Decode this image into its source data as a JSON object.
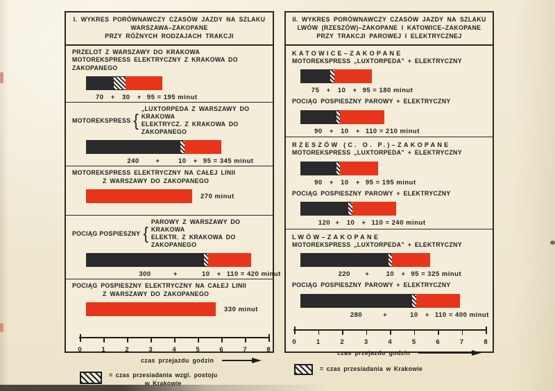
{
  "symbols": {
    "plus": "+",
    "equals": "="
  },
  "chart_data": [
    {
      "type": "bar",
      "panel": "I",
      "title_lines": [
        "I. WYKRES PORÓWNAWCZY CZASÓW JAZDY NA SZLAKU",
        "WARSZAWA–ZAKOPANE",
        "PRZY RÓŻNYCH RODZAJACH TRAKCJI"
      ],
      "unit_word": "minut",
      "xlabel": "czas przejazdu godzin",
      "xlim": [
        0,
        8
      ],
      "x_ticks": [
        "0",
        "1",
        "2",
        "3",
        "4",
        "5",
        "6",
        "7",
        "8"
      ],
      "rows": [
        {
          "header_lines": [
            "PRZELOT Z WARSZAWY DO KRAKOWA",
            "MOTOREKSPRESS ELEKTRYCZNY Z KRAKOWA DO ZAKOPANEGO"
          ],
          "hdr_style": "left",
          "divider_top": false,
          "segments": [
            {
              "kind": "black",
              "minutes": 70
            },
            {
              "kind": "hatch",
              "minutes": 30
            },
            {
              "kind": "red",
              "minutes": 95
            }
          ],
          "total_minutes": 195,
          "sum_label": "70 + 30 + 95 = 195 minut"
        },
        {
          "brace": {
            "left": "MOTOREKSPRESS",
            "lines": [
              "„LUXTORPEDA Z WARSZAWY DO KRAKOWA",
              "ELEKTRYCZ. Z KRAKOWA DO ZAKOPANEGO"
            ]
          },
          "divider_top": true,
          "segments": [
            {
              "kind": "black",
              "minutes": 240
            },
            {
              "kind": "hatch",
              "minutes": 10
            },
            {
              "kind": "red",
              "minutes": 95
            }
          ],
          "total_minutes": 345,
          "sum_label": "240 + 10 + 95 = 345 minut"
        },
        {
          "header_lines": [
            "MOTOREKSPRESS ELEKTRYCZNY NA CAŁEJ LINII",
            "Z WARSZAWY DO ZAKOPANEGO"
          ],
          "hdr_style": "indent2",
          "divider_top": true,
          "segments": [
            {
              "kind": "red",
              "minutes": 270
            }
          ],
          "total_minutes": 270,
          "label_right": true,
          "sum_label": "270 minut"
        },
        {
          "brace": {
            "left": "POCIĄG POSPIESZNY",
            "lines": [
              "PAROWY Z WARSZAWY DO KRAKOWA",
              "ELEKTR. Z KRAKOWA DO ZAKOPANEGO"
            ]
          },
          "divider_top": true,
          "segments": [
            {
              "kind": "black",
              "minutes": 300
            },
            {
              "kind": "hatch",
              "minutes": 10
            },
            {
              "kind": "red",
              "minutes": 110
            }
          ],
          "total_minutes": 420,
          "sum_label": "300 + 10 + 110 = 420 minut"
        },
        {
          "header_lines": [
            "POCIĄG POSPIESZNY ELEKTRYCZNY NA CAŁEJ LINII",
            "Z WARSZAWY DO ZAKOPANEGO"
          ],
          "hdr_style": "indent2",
          "divider_top": true,
          "segments": [
            {
              "kind": "red",
              "minutes": 330
            }
          ],
          "total_minutes": 330,
          "label_right": true,
          "sum_label": "330 minut"
        }
      ],
      "legend": {
        "swatch": "hatch",
        "lines": [
          "= czas przesiadania wzgl. postoju",
          "w Krakowie"
        ]
      }
    },
    {
      "type": "bar",
      "panel": "II",
      "title_lines": [
        "II. WYKRES PORÓWNAWCZY CZASÓW JAZDY NA SZLAKU",
        "LWÓW (RZESZÓW)–ZAKOPANE I KATOWICE–ZAKOPANE",
        "PRZY TRAKCJI PAROWEJ I ELEKTRYCZNEJ"
      ],
      "unit_word": "minut",
      "xlabel": "czas przejazdu godzin",
      "xlim": [
        0,
        8
      ],
      "x_ticks": [
        "0",
        "1",
        "2",
        "3",
        "4",
        "5",
        "6",
        "7",
        "8"
      ],
      "rows": [
        {
          "route": "KATOWICE–ZAKOPANE",
          "header_lines": [
            "MOTOREKSPRESS „LUXTORPEDA” + ELEKTRYCZNY"
          ],
          "divider_top": false,
          "segments": [
            {
              "kind": "black",
              "minutes": 75
            },
            {
              "kind": "hatch",
              "minutes": 10
            },
            {
              "kind": "red",
              "minutes": 95
            }
          ],
          "total_minutes": 180,
          "sum_label": "75 + 10 + 95 = 180 minut"
        },
        {
          "header_lines": [
            "POCIĄG POSPIESZNY PAROWY + ELEKTRYCZNY"
          ],
          "divider_top": false,
          "segments": [
            {
              "kind": "black",
              "minutes": 90
            },
            {
              "kind": "hatch",
              "minutes": 10
            },
            {
              "kind": "red",
              "minutes": 110
            }
          ],
          "total_minutes": 210,
          "sum_label": "90 + 10 + 110 = 210 minut"
        },
        {
          "route": "RZESZÓW (C. O. P.)–ZAKOPANE",
          "header_lines": [
            "MOTOREKSPRESS „LUXTORPEDA” + ELEKTRYCZNY"
          ],
          "divider_top": true,
          "segments": [
            {
              "kind": "black",
              "minutes": 90
            },
            {
              "kind": "hatch",
              "minutes": 10
            },
            {
              "kind": "red",
              "minutes": 95
            }
          ],
          "total_minutes": 195,
          "sum_label": "90 + 10 + 95 = 195 minut"
        },
        {
          "header_lines": [
            "POCIĄG POSPIESZNY PAROWY + ELEKTRYCZNY"
          ],
          "divider_top": false,
          "segments": [
            {
              "kind": "black",
              "minutes": 120
            },
            {
              "kind": "hatch",
              "minutes": 10
            },
            {
              "kind": "red",
              "minutes": 110
            }
          ],
          "total_minutes": 240,
          "sum_label": "120 + 10 + 110 = 240 minut"
        },
        {
          "route": "LWÓW–ZAKOPANE",
          "header_lines": [
            "MOTOREKSPRESS „LUXTORPEDA” + ELEKTRYCZNY"
          ],
          "divider_top": true,
          "segments": [
            {
              "kind": "black",
              "minutes": 220
            },
            {
              "kind": "hatch",
              "minutes": 10
            },
            {
              "kind": "red",
              "minutes": 95
            }
          ],
          "total_minutes": 325,
          "sum_label": "220 + 10 + 95 = 325 minut"
        },
        {
          "header_lines": [
            "POCIĄG POSPIESZNY PAROWY + ELEKTRYCZNY"
          ],
          "divider_top": false,
          "segments": [
            {
              "kind": "black",
              "minutes": 280
            },
            {
              "kind": "hatch",
              "minutes": 10
            },
            {
              "kind": "red",
              "minutes": 110
            }
          ],
          "total_minutes": 400,
          "sum_label": "280 + 10 + 110 = 400 minut"
        }
      ],
      "legend": {
        "swatch": "hatch",
        "lines": [
          "= czas przesiadania w Krakowie"
        ]
      }
    }
  ],
  "colors": {
    "bar_black": "#2a2a2d",
    "bar_red": "#e7351b",
    "paper": "#f2ebd6",
    "ink": "#21211e"
  }
}
